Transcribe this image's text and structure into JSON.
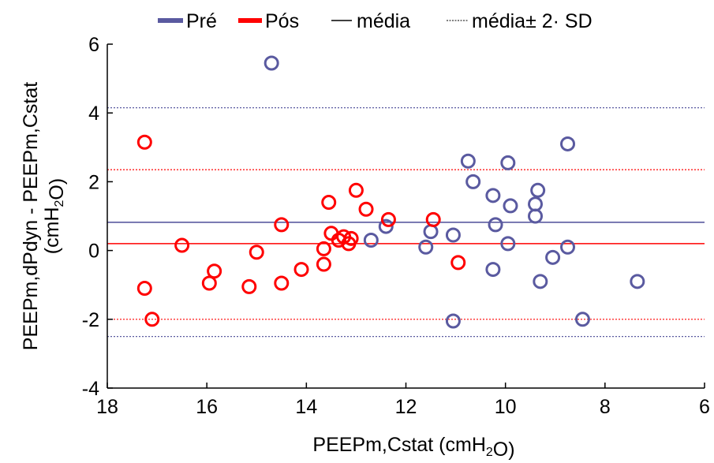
{
  "chart_data": {
    "type": "scatter",
    "title": "",
    "xlabel": "PEEPm,Cstat (cmH_2O)",
    "ylabel": "PEEPm,dPdyn - PEEPm,Cstat",
    "ylabel_line2": "(cmH_2O)",
    "xlim": [
      18,
      6
    ],
    "ylim": [
      -4,
      6
    ],
    "x_reversed": true,
    "grid": false,
    "legend_position": "top",
    "xticks": [
      18,
      16,
      14,
      12,
      10,
      8,
      6
    ],
    "yticks": [
      -4,
      -2,
      0,
      2,
      4,
      6
    ],
    "colors": {
      "pre": "#5a5aa0",
      "pos": "#ff0000"
    },
    "legend": [
      {
        "label": "Pré",
        "style": "thick-line",
        "color": "#5a5aa0"
      },
      {
        "label": "Pós",
        "style": "thick-line",
        "color": "#ff0000"
      },
      {
        "label": "média",
        "style": "solid-line",
        "color": "#000000"
      },
      {
        "label": "média± 2· SD",
        "style": "dotted-line",
        "color": "#000000"
      }
    ],
    "series": [
      {
        "name": "Pré",
        "color": "#5a5aa0",
        "mean": 0.82,
        "upper": 4.15,
        "lower": -2.5,
        "points": [
          [
            14.7,
            5.45
          ],
          [
            12.4,
            0.7
          ],
          [
            12.7,
            0.3
          ],
          [
            11.5,
            0.55
          ],
          [
            11.6,
            0.1
          ],
          [
            11.05,
            0.45
          ],
          [
            11.05,
            -2.05
          ],
          [
            10.75,
            2.6
          ],
          [
            10.65,
            2.0
          ],
          [
            10.25,
            1.6
          ],
          [
            10.2,
            0.75
          ],
          [
            10.25,
            -0.55
          ],
          [
            9.95,
            2.55
          ],
          [
            9.9,
            1.3
          ],
          [
            9.95,
            0.2
          ],
          [
            9.35,
            1.75
          ],
          [
            9.4,
            1.35
          ],
          [
            9.4,
            1.0
          ],
          [
            9.3,
            -0.9
          ],
          [
            9.05,
            -0.2
          ],
          [
            8.75,
            3.1
          ],
          [
            8.75,
            0.1
          ],
          [
            8.45,
            -2.0
          ],
          [
            7.35,
            -0.9
          ]
        ]
      },
      {
        "name": "Pós",
        "color": "#ff0000",
        "mean": 0.2,
        "upper": 2.35,
        "lower": -2.0,
        "points": [
          [
            17.25,
            3.15
          ],
          [
            17.25,
            -1.1
          ],
          [
            17.1,
            -2.0
          ],
          [
            16.5,
            0.15
          ],
          [
            15.95,
            -0.95
          ],
          [
            15.85,
            -0.6
          ],
          [
            15.15,
            -1.05
          ],
          [
            15.0,
            -0.05
          ],
          [
            14.5,
            0.75
          ],
          [
            14.5,
            -0.95
          ],
          [
            14.1,
            -0.55
          ],
          [
            13.65,
            0.05
          ],
          [
            13.65,
            -0.4
          ],
          [
            13.55,
            1.4
          ],
          [
            13.5,
            0.5
          ],
          [
            13.35,
            0.3
          ],
          [
            13.25,
            0.4
          ],
          [
            13.15,
            0.2
          ],
          [
            13.1,
            0.35
          ],
          [
            13.0,
            1.75
          ],
          [
            12.8,
            1.2
          ],
          [
            12.35,
            0.9
          ],
          [
            11.45,
            0.9
          ],
          [
            10.95,
            -0.35
          ]
        ]
      }
    ]
  }
}
